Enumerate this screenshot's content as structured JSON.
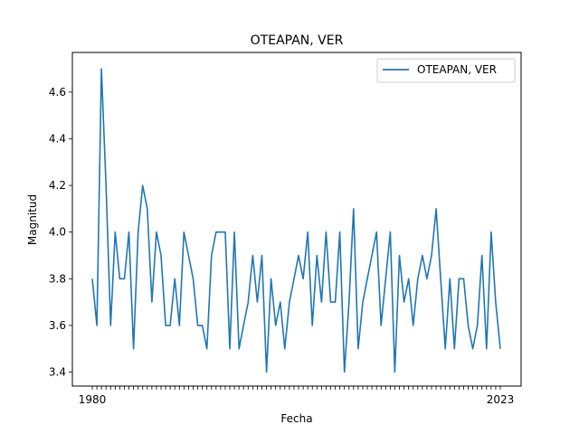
{
  "chart_data": {
    "type": "line",
    "title": "OTEAPAN, VER",
    "xlabel": "Fecha",
    "ylabel": "Magnitud",
    "ylim": [
      3.34,
      4.77
    ],
    "yticks": [
      3.4,
      3.6,
      3.8,
      4.0,
      4.2,
      4.4,
      4.6
    ],
    "ytick_labels": [
      "3.4",
      "3.6",
      "3.8",
      "4.0",
      "4.2",
      "4.4",
      "4.6"
    ],
    "xtick_labels": [
      "1980",
      "2023"
    ],
    "grid": false,
    "legend_position": "top-right",
    "color": "#1f77b4",
    "series": [
      {
        "name": "OTEAPAN, VER",
        "values": [
          3.8,
          3.6,
          4.7,
          4.2,
          3.6,
          4.0,
          3.8,
          3.8,
          4.0,
          3.5,
          4.0,
          4.2,
          4.1,
          3.7,
          4.0,
          3.9,
          3.6,
          3.6,
          3.8,
          3.6,
          4.0,
          3.9,
          3.8,
          3.6,
          3.6,
          3.5,
          3.9,
          4.0,
          4.0,
          4.0,
          3.5,
          4.0,
          3.5,
          3.6,
          3.7,
          3.9,
          3.7,
          3.9,
          3.4,
          3.8,
          3.6,
          3.7,
          3.5,
          3.7,
          3.8,
          3.9,
          3.8,
          4.0,
          3.6,
          3.9,
          3.7,
          4.0,
          3.7,
          3.7,
          4.0,
          3.4,
          3.7,
          4.1,
          3.5,
          3.7,
          3.8,
          3.9,
          4.0,
          3.6,
          3.8,
          4.0,
          3.4,
          3.9,
          3.7,
          3.8,
          3.6,
          3.8,
          3.9,
          3.8,
          3.9,
          4.1,
          3.8,
          3.5,
          3.8,
          3.5,
          3.8,
          3.8,
          3.6,
          3.5,
          3.6,
          3.9,
          3.5,
          4.0,
          3.7,
          3.5
        ]
      }
    ]
  }
}
